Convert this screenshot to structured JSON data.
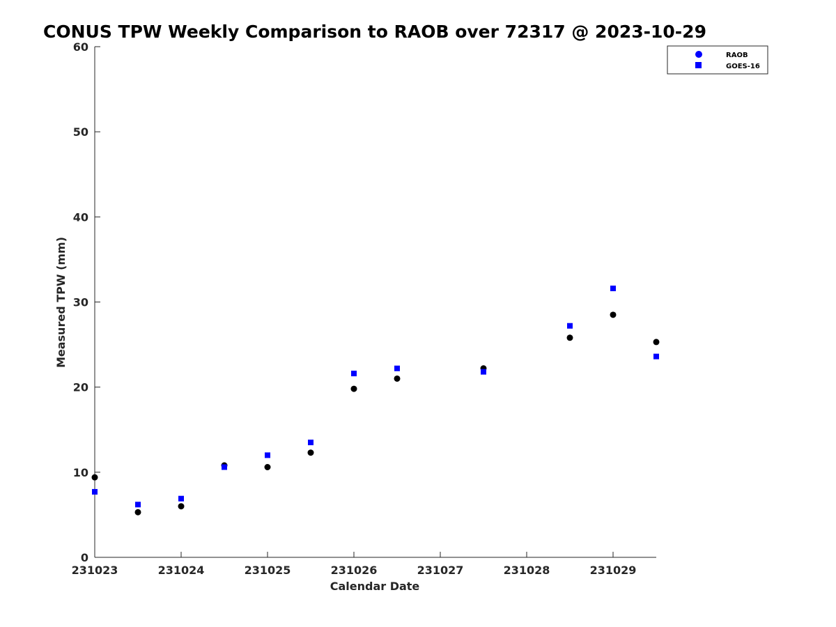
{
  "chart_data": {
    "type": "scatter",
    "title": "CONUS TPW Weekly Comparison to RAOB over 72317 @ 2023-10-29",
    "xlabel": "Calendar Date",
    "ylabel": "Measured TPW (mm)",
    "xlim": [
      0,
      6.5
    ],
    "ylim": [
      0,
      60
    ],
    "xticks": [
      0,
      1,
      2,
      3,
      4,
      5,
      6
    ],
    "xtick_labels": [
      "231023",
      "231024",
      "231025",
      "231026",
      "231027",
      "231028",
      "231029"
    ],
    "yticks": [
      0,
      10,
      20,
      30,
      40,
      50,
      60
    ],
    "ytick_labels": [
      "0",
      "10",
      "20",
      "30",
      "40",
      "50",
      "60"
    ],
    "grid": false,
    "legend_position": "top-right",
    "series": [
      {
        "name": "RAOB",
        "marker": "circle",
        "color": "#000000",
        "legend_color": "#0000ff",
        "x": [
          0,
          0.5,
          1,
          1.5,
          2,
          2.5,
          3,
          3.5,
          4.5,
          5.5,
          6,
          6.5
        ],
        "y": [
          9.4,
          5.3,
          6.0,
          10.8,
          10.6,
          12.3,
          19.8,
          21.0,
          22.2,
          25.8,
          28.5,
          25.3
        ]
      },
      {
        "name": "GOES-16",
        "marker": "square",
        "color": "#0000ff",
        "legend_color": "#0000ff",
        "x": [
          0,
          0.5,
          1,
          1.5,
          2,
          2.5,
          3,
          3.5,
          4.5,
          5.5,
          6,
          6.5
        ],
        "y": [
          7.7,
          6.2,
          6.9,
          10.6,
          12.0,
          13.5,
          21.6,
          22.2,
          21.8,
          27.2,
          31.6,
          23.6
        ]
      }
    ]
  }
}
